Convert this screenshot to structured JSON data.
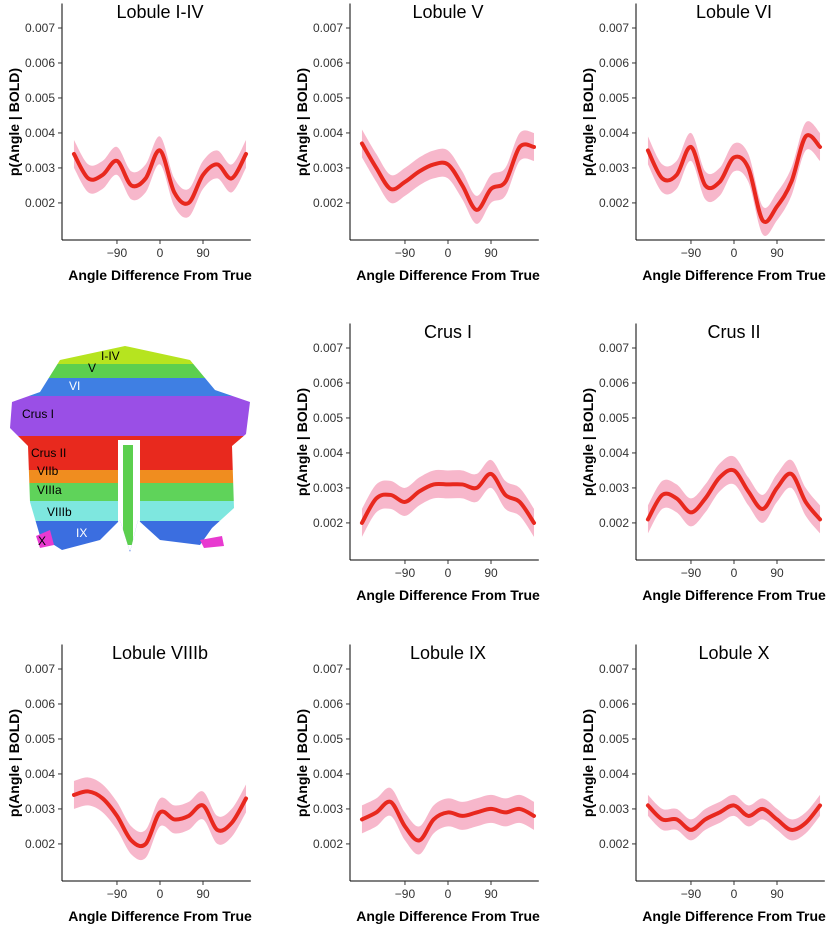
{
  "chart_data": [
    {
      "type": "line",
      "title": "Lobule I-IV",
      "xlabel": "Angle Difference From True",
      "ylabel": "p(Angle | BOLD)",
      "x": [
        -180,
        -150,
        -120,
        -90,
        -60,
        -30,
        0,
        30,
        60,
        90,
        120,
        150,
        180
      ],
      "xlim": [
        -205,
        190
      ],
      "xticks": [
        {
          "value": -90,
          "label": "−90"
        },
        0,
        90
      ],
      "ylim": [
        0.00094,
        0.0077
      ],
      "yticks": [
        0.002,
        0.003,
        0.004,
        0.005,
        0.006,
        0.007
      ],
      "series": [
        {
          "color": "#e8281e",
          "band_color": "#f7b7cb",
          "values": [
            0.0034,
            0.0027,
            0.0028,
            0.0032,
            0.0025,
            0.0027,
            0.0035,
            0.0023,
            0.002,
            0.0028,
            0.0031,
            0.0027,
            0.0034
          ],
          "lower": [
            0.003,
            0.0023,
            0.0024,
            0.0028,
            0.0021,
            0.0023,
            0.0031,
            0.0019,
            0.0016,
            0.0024,
            0.0027,
            0.0023,
            0.003
          ],
          "upper": [
            0.0038,
            0.0031,
            0.0032,
            0.0036,
            0.0029,
            0.0031,
            0.0039,
            0.0027,
            0.0024,
            0.0032,
            0.0035,
            0.0031,
            0.0038
          ]
        }
      ]
    },
    {
      "type": "line",
      "title": "Lobule V",
      "xlabel": "Angle Difference From True",
      "ylabel": "p(Angle | BOLD)",
      "x": [
        -180,
        -150,
        -120,
        -90,
        -60,
        -30,
        0,
        30,
        60,
        90,
        120,
        150,
        180
      ],
      "xlim": [
        -205,
        190
      ],
      "xticks": [
        {
          "value": -90,
          "label": "−90"
        },
        0,
        90
      ],
      "ylim": [
        0.00094,
        0.0077
      ],
      "yticks": [
        0.002,
        0.003,
        0.004,
        0.005,
        0.006,
        0.007
      ],
      "series": [
        {
          "color": "#e8281e",
          "band_color": "#f7b7cb",
          "values": [
            0.0037,
            0.003,
            0.0024,
            0.0026,
            0.0029,
            0.0031,
            0.0031,
            0.0025,
            0.0018,
            0.0024,
            0.0026,
            0.0036,
            0.0036
          ],
          "lower": [
            0.0033,
            0.0026,
            0.002,
            0.0022,
            0.0025,
            0.0027,
            0.0027,
            0.0021,
            0.0014,
            0.002,
            0.0022,
            0.0032,
            0.0032
          ],
          "upper": [
            0.0041,
            0.0034,
            0.0028,
            0.003,
            0.0033,
            0.0035,
            0.0035,
            0.0029,
            0.0022,
            0.0028,
            0.003,
            0.004,
            0.004
          ]
        }
      ]
    },
    {
      "type": "line",
      "title": "Lobule VI",
      "xlabel": "Angle Difference From True",
      "ylabel": "p(Angle | BOLD)",
      "x": [
        -180,
        -150,
        -120,
        -90,
        -60,
        -30,
        0,
        30,
        60,
        90,
        120,
        150,
        180
      ],
      "xlim": [
        -205,
        190
      ],
      "xticks": [
        {
          "value": -90,
          "label": "−90"
        },
        0,
        90
      ],
      "ylim": [
        0.00094,
        0.0077
      ],
      "yticks": [
        0.002,
        0.003,
        0.004,
        0.005,
        0.006,
        0.007
      ],
      "series": [
        {
          "color": "#e8281e",
          "band_color": "#f7b7cb",
          "values": [
            0.0035,
            0.0027,
            0.0028,
            0.0036,
            0.0025,
            0.0026,
            0.0033,
            0.003,
            0.0015,
            0.0019,
            0.0026,
            0.0039,
            0.0036
          ],
          "lower": [
            0.0031,
            0.0023,
            0.0024,
            0.0032,
            0.0021,
            0.0022,
            0.0029,
            0.0026,
            0.0011,
            0.0015,
            0.0022,
            0.0035,
            0.0032
          ],
          "upper": [
            0.0039,
            0.0031,
            0.0032,
            0.004,
            0.0029,
            0.003,
            0.0037,
            0.0034,
            0.0019,
            0.0023,
            0.003,
            0.0043,
            0.004
          ]
        }
      ]
    },
    {
      "type": "line",
      "title": "Crus I",
      "xlabel": "Angle Difference From True",
      "ylabel": "p(Angle | BOLD)",
      "x": [
        -180,
        -150,
        -120,
        -90,
        -60,
        -30,
        0,
        30,
        60,
        90,
        120,
        150,
        180
      ],
      "xlim": [
        -205,
        190
      ],
      "xticks": [
        {
          "value": -90,
          "label": "−90"
        },
        0,
        90
      ],
      "ylim": [
        0.00094,
        0.0077
      ],
      "yticks": [
        0.002,
        0.003,
        0.004,
        0.005,
        0.006,
        0.007
      ],
      "series": [
        {
          "color": "#e8281e",
          "band_color": "#f7b7cb",
          "values": [
            0.002,
            0.0027,
            0.0028,
            0.0026,
            0.0029,
            0.0031,
            0.0031,
            0.0031,
            0.003,
            0.0034,
            0.0028,
            0.0026,
            0.002
          ],
          "lower": [
            0.0016,
            0.0023,
            0.0024,
            0.0022,
            0.0025,
            0.0027,
            0.0027,
            0.0027,
            0.0026,
            0.003,
            0.0024,
            0.0022,
            0.0016
          ],
          "upper": [
            0.0024,
            0.0031,
            0.0032,
            0.003,
            0.0033,
            0.0035,
            0.0035,
            0.0035,
            0.0034,
            0.0038,
            0.0032,
            0.003,
            0.0024
          ]
        }
      ]
    },
    {
      "type": "line",
      "title": "Crus II",
      "xlabel": "Angle Difference From True",
      "ylabel": "p(Angle | BOLD)",
      "x": [
        -180,
        -150,
        -120,
        -90,
        -60,
        -30,
        0,
        30,
        60,
        90,
        120,
        150,
        180
      ],
      "xlim": [
        -205,
        190
      ],
      "xticks": [
        {
          "value": -90,
          "label": "−90"
        },
        0,
        90
      ],
      "ylim": [
        0.00094,
        0.0077
      ],
      "yticks": [
        0.002,
        0.003,
        0.004,
        0.005,
        0.006,
        0.007
      ],
      "series": [
        {
          "color": "#e8281e",
          "band_color": "#f7b7cb",
          "values": [
            0.0021,
            0.0028,
            0.0027,
            0.0023,
            0.0027,
            0.0033,
            0.0035,
            0.0029,
            0.0024,
            0.003,
            0.0034,
            0.0026,
            0.0021
          ],
          "lower": [
            0.0017,
            0.0024,
            0.0023,
            0.0019,
            0.0023,
            0.0029,
            0.0031,
            0.0025,
            0.002,
            0.0026,
            0.003,
            0.0022,
            0.0017
          ],
          "upper": [
            0.0025,
            0.0032,
            0.0031,
            0.0027,
            0.0031,
            0.0037,
            0.0039,
            0.0033,
            0.0028,
            0.0034,
            0.0038,
            0.003,
            0.0025
          ]
        }
      ]
    },
    {
      "type": "line",
      "title": "Lobule VIIIb",
      "xlabel": "Angle Difference From True",
      "ylabel": "p(Angle | BOLD)",
      "x": [
        -180,
        -150,
        -120,
        -90,
        -60,
        -30,
        0,
        30,
        60,
        90,
        120,
        150,
        180
      ],
      "xlim": [
        -205,
        190
      ],
      "xticks": [
        {
          "value": -90,
          "label": "−90"
        },
        0,
        90
      ],
      "ylim": [
        0.00094,
        0.0077
      ],
      "yticks": [
        0.002,
        0.003,
        0.004,
        0.005,
        0.006,
        0.007
      ],
      "series": [
        {
          "color": "#e8281e",
          "band_color": "#f7b7cb",
          "values": [
            0.0034,
            0.0035,
            0.0033,
            0.0028,
            0.0021,
            0.002,
            0.0029,
            0.0027,
            0.0028,
            0.0031,
            0.0024,
            0.0026,
            0.0033
          ],
          "lower": [
            0.003,
            0.0031,
            0.0029,
            0.0024,
            0.0017,
            0.0016,
            0.0025,
            0.0023,
            0.0024,
            0.0027,
            0.002,
            0.0022,
            0.0029
          ],
          "upper": [
            0.0038,
            0.0039,
            0.0037,
            0.0032,
            0.0025,
            0.0024,
            0.0033,
            0.0031,
            0.0032,
            0.0035,
            0.0028,
            0.003,
            0.0037
          ]
        }
      ]
    },
    {
      "type": "line",
      "title": "Lobule IX",
      "xlabel": "Angle Difference From True",
      "ylabel": "p(Angle | BOLD)",
      "x": [
        -180,
        -150,
        -120,
        -90,
        -60,
        -30,
        0,
        30,
        60,
        90,
        120,
        150,
        180
      ],
      "xlim": [
        -205,
        190
      ],
      "xticks": [
        {
          "value": -90,
          "label": "−90"
        },
        0,
        90
      ],
      "ylim": [
        0.00094,
        0.0077
      ],
      "yticks": [
        0.002,
        0.003,
        0.004,
        0.005,
        0.006,
        0.007
      ],
      "series": [
        {
          "color": "#e8281e",
          "band_color": "#f7b7cb",
          "values": [
            0.0027,
            0.0029,
            0.0032,
            0.0025,
            0.0021,
            0.0027,
            0.0029,
            0.0028,
            0.0029,
            0.003,
            0.0029,
            0.003,
            0.0028
          ],
          "lower": [
            0.0023,
            0.0025,
            0.0028,
            0.0021,
            0.0017,
            0.0023,
            0.0025,
            0.0024,
            0.0025,
            0.0026,
            0.0025,
            0.0026,
            0.0024
          ],
          "upper": [
            0.0031,
            0.0033,
            0.0036,
            0.0029,
            0.0025,
            0.0031,
            0.0033,
            0.0032,
            0.0033,
            0.0034,
            0.0033,
            0.0034,
            0.0032
          ]
        }
      ]
    },
    {
      "type": "line",
      "title": "Lobule X",
      "xlabel": "Angle Difference From True",
      "ylabel": "p(Angle | BOLD)",
      "x": [
        -180,
        -150,
        -120,
        -90,
        -60,
        -30,
        0,
        30,
        60,
        90,
        120,
        150,
        180
      ],
      "xlim": [
        -205,
        190
      ],
      "xticks": [
        {
          "value": -90,
          "label": "−90"
        },
        0,
        90
      ],
      "ylim": [
        0.00094,
        0.0077
      ],
      "yticks": [
        0.002,
        0.003,
        0.004,
        0.005,
        0.006,
        0.007
      ],
      "series": [
        {
          "color": "#e8281e",
          "band_color": "#f7b7cb",
          "values": [
            0.0031,
            0.0027,
            0.0027,
            0.0024,
            0.0027,
            0.0029,
            0.0031,
            0.0028,
            0.003,
            0.0027,
            0.0024,
            0.0026,
            0.0031
          ],
          "lower": [
            0.0028,
            0.0024,
            0.0024,
            0.0021,
            0.0024,
            0.0026,
            0.0028,
            0.0025,
            0.0027,
            0.0024,
            0.0021,
            0.0023,
            0.0028
          ],
          "upper": [
            0.0034,
            0.003,
            0.003,
            0.0027,
            0.003,
            0.0032,
            0.0034,
            0.0031,
            0.0033,
            0.003,
            0.0027,
            0.0029,
            0.0034
          ]
        }
      ]
    }
  ],
  "diagram": {
    "labels": [
      "I-IV",
      "V",
      "VI",
      "Crus I",
      "Crus II",
      "VIIb",
      "VIIIa",
      "VIIIb",
      "IX",
      "X"
    ]
  }
}
